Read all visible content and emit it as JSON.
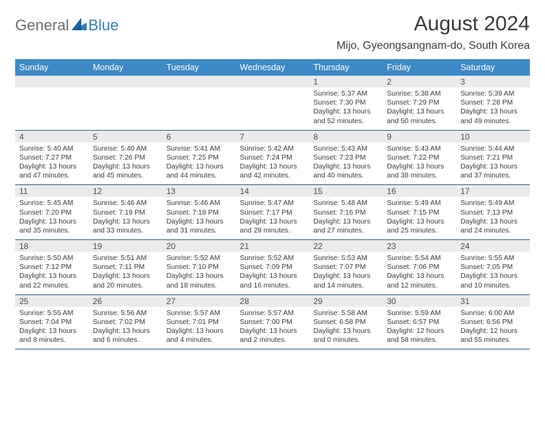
{
  "logo": {
    "general": "General",
    "blue": "Blue"
  },
  "title": "August 2024",
  "location": "Mijo, Gyeongsangnam-do, South Korea",
  "colors": {
    "header_bg": "#3c89c6",
    "header_text": "#ffffff",
    "daynum_bg": "#ebebeb",
    "text": "#3a3a3a",
    "rule": "#2a5e8a",
    "logo_gray": "#6b6b6b",
    "logo_blue": "#2f7fc2"
  },
  "dow": [
    "Sunday",
    "Monday",
    "Tuesday",
    "Wednesday",
    "Thursday",
    "Friday",
    "Saturday"
  ],
  "weeks": [
    [
      null,
      null,
      null,
      null,
      {
        "n": "1",
        "sr": "Sunrise: 5:37 AM",
        "ss": "Sunset: 7:30 PM",
        "d1": "Daylight: 13 hours",
        "d2": "and 52 minutes."
      },
      {
        "n": "2",
        "sr": "Sunrise: 5:38 AM",
        "ss": "Sunset: 7:29 PM",
        "d1": "Daylight: 13 hours",
        "d2": "and 50 minutes."
      },
      {
        "n": "3",
        "sr": "Sunrise: 5:39 AM",
        "ss": "Sunset: 7:28 PM",
        "d1": "Daylight: 13 hours",
        "d2": "and 49 minutes."
      }
    ],
    [
      {
        "n": "4",
        "sr": "Sunrise: 5:40 AM",
        "ss": "Sunset: 7:27 PM",
        "d1": "Daylight: 13 hours",
        "d2": "and 47 minutes."
      },
      {
        "n": "5",
        "sr": "Sunrise: 5:40 AM",
        "ss": "Sunset: 7:26 PM",
        "d1": "Daylight: 13 hours",
        "d2": "and 45 minutes."
      },
      {
        "n": "6",
        "sr": "Sunrise: 5:41 AM",
        "ss": "Sunset: 7:25 PM",
        "d1": "Daylight: 13 hours",
        "d2": "and 44 minutes."
      },
      {
        "n": "7",
        "sr": "Sunrise: 5:42 AM",
        "ss": "Sunset: 7:24 PM",
        "d1": "Daylight: 13 hours",
        "d2": "and 42 minutes."
      },
      {
        "n": "8",
        "sr": "Sunrise: 5:43 AM",
        "ss": "Sunset: 7:23 PM",
        "d1": "Daylight: 13 hours",
        "d2": "and 40 minutes."
      },
      {
        "n": "9",
        "sr": "Sunrise: 5:43 AM",
        "ss": "Sunset: 7:22 PM",
        "d1": "Daylight: 13 hours",
        "d2": "and 38 minutes."
      },
      {
        "n": "10",
        "sr": "Sunrise: 5:44 AM",
        "ss": "Sunset: 7:21 PM",
        "d1": "Daylight: 13 hours",
        "d2": "and 37 minutes."
      }
    ],
    [
      {
        "n": "11",
        "sr": "Sunrise: 5:45 AM",
        "ss": "Sunset: 7:20 PM",
        "d1": "Daylight: 13 hours",
        "d2": "and 35 minutes."
      },
      {
        "n": "12",
        "sr": "Sunrise: 5:46 AM",
        "ss": "Sunset: 7:19 PM",
        "d1": "Daylight: 13 hours",
        "d2": "and 33 minutes."
      },
      {
        "n": "13",
        "sr": "Sunrise: 5:46 AM",
        "ss": "Sunset: 7:18 PM",
        "d1": "Daylight: 13 hours",
        "d2": "and 31 minutes."
      },
      {
        "n": "14",
        "sr": "Sunrise: 5:47 AM",
        "ss": "Sunset: 7:17 PM",
        "d1": "Daylight: 13 hours",
        "d2": "and 29 minutes."
      },
      {
        "n": "15",
        "sr": "Sunrise: 5:48 AM",
        "ss": "Sunset: 7:16 PM",
        "d1": "Daylight: 13 hours",
        "d2": "and 27 minutes."
      },
      {
        "n": "16",
        "sr": "Sunrise: 5:49 AM",
        "ss": "Sunset: 7:15 PM",
        "d1": "Daylight: 13 hours",
        "d2": "and 25 minutes."
      },
      {
        "n": "17",
        "sr": "Sunrise: 5:49 AM",
        "ss": "Sunset: 7:13 PM",
        "d1": "Daylight: 13 hours",
        "d2": "and 24 minutes."
      }
    ],
    [
      {
        "n": "18",
        "sr": "Sunrise: 5:50 AM",
        "ss": "Sunset: 7:12 PM",
        "d1": "Daylight: 13 hours",
        "d2": "and 22 minutes."
      },
      {
        "n": "19",
        "sr": "Sunrise: 5:51 AM",
        "ss": "Sunset: 7:11 PM",
        "d1": "Daylight: 13 hours",
        "d2": "and 20 minutes."
      },
      {
        "n": "20",
        "sr": "Sunrise: 5:52 AM",
        "ss": "Sunset: 7:10 PM",
        "d1": "Daylight: 13 hours",
        "d2": "and 18 minutes."
      },
      {
        "n": "21",
        "sr": "Sunrise: 5:52 AM",
        "ss": "Sunset: 7:09 PM",
        "d1": "Daylight: 13 hours",
        "d2": "and 16 minutes."
      },
      {
        "n": "22",
        "sr": "Sunrise: 5:53 AM",
        "ss": "Sunset: 7:07 PM",
        "d1": "Daylight: 13 hours",
        "d2": "and 14 minutes."
      },
      {
        "n": "23",
        "sr": "Sunrise: 5:54 AM",
        "ss": "Sunset: 7:06 PM",
        "d1": "Daylight: 13 hours",
        "d2": "and 12 minutes."
      },
      {
        "n": "24",
        "sr": "Sunrise: 5:55 AM",
        "ss": "Sunset: 7:05 PM",
        "d1": "Daylight: 13 hours",
        "d2": "and 10 minutes."
      }
    ],
    [
      {
        "n": "25",
        "sr": "Sunrise: 5:55 AM",
        "ss": "Sunset: 7:04 PM",
        "d1": "Daylight: 13 hours",
        "d2": "and 8 minutes."
      },
      {
        "n": "26",
        "sr": "Sunrise: 5:56 AM",
        "ss": "Sunset: 7:02 PM",
        "d1": "Daylight: 13 hours",
        "d2": "and 6 minutes."
      },
      {
        "n": "27",
        "sr": "Sunrise: 5:57 AM",
        "ss": "Sunset: 7:01 PM",
        "d1": "Daylight: 13 hours",
        "d2": "and 4 minutes."
      },
      {
        "n": "28",
        "sr": "Sunrise: 5:57 AM",
        "ss": "Sunset: 7:00 PM",
        "d1": "Daylight: 13 hours",
        "d2": "and 2 minutes."
      },
      {
        "n": "29",
        "sr": "Sunrise: 5:58 AM",
        "ss": "Sunset: 6:58 PM",
        "d1": "Daylight: 13 hours",
        "d2": "and 0 minutes."
      },
      {
        "n": "30",
        "sr": "Sunrise: 5:59 AM",
        "ss": "Sunset: 6:57 PM",
        "d1": "Daylight: 12 hours",
        "d2": "and 58 minutes."
      },
      {
        "n": "31",
        "sr": "Sunrise: 6:00 AM",
        "ss": "Sunset: 6:56 PM",
        "d1": "Daylight: 12 hours",
        "d2": "and 55 minutes."
      }
    ]
  ]
}
